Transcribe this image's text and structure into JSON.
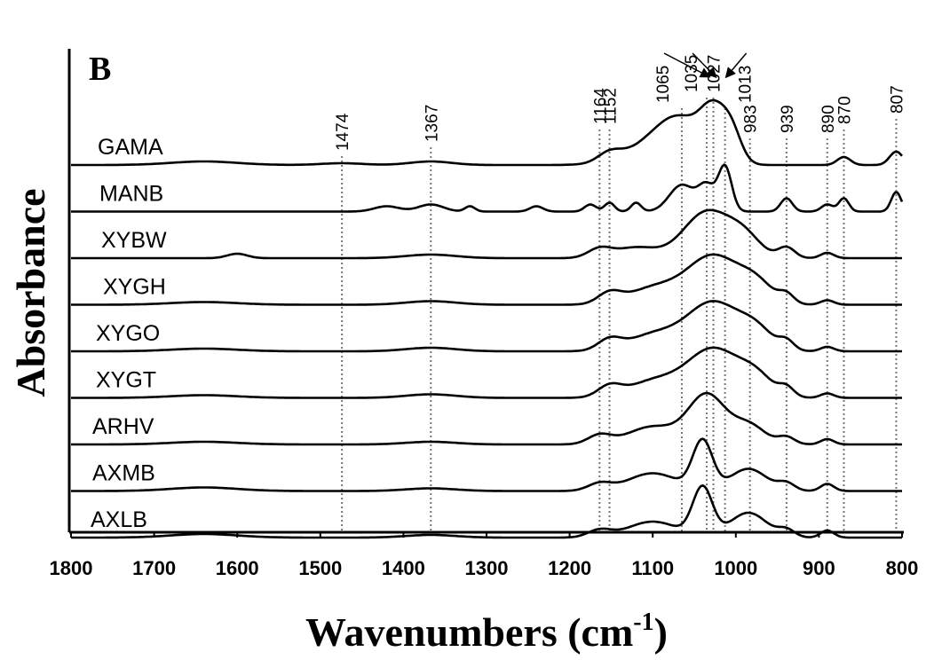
{
  "chart_data": {
    "type": "line",
    "panel_label": "B",
    "xlabel": "Wavenumbers (cm",
    "xlabel_sup": "-1",
    "xlabel_close": ")",
    "ylabel": "Absorbance",
    "xlim": [
      1800,
      800
    ],
    "x_reversed": true,
    "x_ticks": [
      1800,
      1700,
      1600,
      1500,
      1400,
      1300,
      1200,
      1100,
      1000,
      900,
      800
    ],
    "grid": false,
    "reference_lines": [
      1474,
      1367,
      1164,
      1152,
      1065,
      1035,
      1027,
      1013,
      983,
      939,
      890,
      870,
      807
    ],
    "series": [
      {
        "name": "GAMA",
        "offset": 0,
        "baseline": 0.0,
        "peaks": [
          [
            1640,
            4,
            40
          ],
          [
            1474,
            2,
            25
          ],
          [
            1367,
            4,
            25
          ],
          [
            1152,
            10,
            14
          ],
          [
            1100,
            20,
            35
          ],
          [
            1065,
            42,
            28
          ],
          [
            1027,
            48,
            15
          ],
          [
            1005,
            32,
            12
          ],
          [
            870,
            9,
            8
          ],
          [
            807,
            15,
            8
          ]
        ]
      },
      {
        "name": "MANB",
        "offset": 1,
        "baseline": 0.0,
        "peaks": [
          [
            1420,
            6,
            15
          ],
          [
            1367,
            8,
            15
          ],
          [
            1320,
            6,
            6
          ],
          [
            1240,
            6,
            8
          ],
          [
            1175,
            8,
            7
          ],
          [
            1152,
            10,
            6
          ],
          [
            1120,
            10,
            6
          ],
          [
            1065,
            30,
            15
          ],
          [
            1035,
            28,
            10
          ],
          [
            1013,
            50,
            8
          ],
          [
            939,
            15,
            7
          ],
          [
            890,
            8,
            7
          ],
          [
            870,
            15,
            6
          ],
          [
            807,
            22,
            6
          ]
        ]
      },
      {
        "name": "XYBW",
        "offset": 2,
        "baseline": 0.0,
        "peaks": [
          [
            1600,
            5,
            12
          ],
          [
            1367,
            4,
            30
          ],
          [
            1164,
            10,
            14
          ],
          [
            1120,
            12,
            25
          ],
          [
            1035,
            52,
            28
          ],
          [
            990,
            22,
            20
          ],
          [
            939,
            12,
            10
          ],
          [
            890,
            6,
            8
          ]
        ]
      },
      {
        "name": "XYGH",
        "offset": 3,
        "baseline": 0.0,
        "peaks": [
          [
            1640,
            3,
            40
          ],
          [
            1367,
            4,
            30
          ],
          [
            1152,
            12,
            14
          ],
          [
            1100,
            18,
            30
          ],
          [
            1027,
            55,
            32
          ],
          [
            975,
            20,
            20
          ],
          [
            939,
            10,
            9
          ],
          [
            890,
            5,
            8
          ]
        ]
      },
      {
        "name": "XYGO",
        "offset": 4,
        "baseline": 0.0,
        "peaks": [
          [
            1640,
            3,
            40
          ],
          [
            1367,
            4,
            30
          ],
          [
            1152,
            12,
            14
          ],
          [
            1100,
            18,
            30
          ],
          [
            1027,
            55,
            32
          ],
          [
            975,
            20,
            20
          ],
          [
            939,
            10,
            9
          ],
          [
            890,
            5,
            8
          ]
        ]
      },
      {
        "name": "XYGT",
        "offset": 5,
        "baseline": 0.0,
        "peaks": [
          [
            1640,
            3,
            40
          ],
          [
            1367,
            4,
            30
          ],
          [
            1152,
            12,
            14
          ],
          [
            1100,
            18,
            30
          ],
          [
            1027,
            55,
            32
          ],
          [
            975,
            20,
            20
          ],
          [
            939,
            10,
            9
          ],
          [
            890,
            5,
            8
          ]
        ]
      },
      {
        "name": "ARHV",
        "offset": 6,
        "baseline": 0.0,
        "peaks": [
          [
            1640,
            3,
            40
          ],
          [
            1367,
            3,
            30
          ],
          [
            1164,
            10,
            14
          ],
          [
            1100,
            20,
            30
          ],
          [
            1035,
            55,
            22
          ],
          [
            985,
            22,
            20
          ],
          [
            939,
            8,
            10
          ],
          [
            890,
            6,
            8
          ]
        ]
      },
      {
        "name": "AXMB",
        "offset": 7,
        "baseline": 0.0,
        "peaks": [
          [
            1640,
            4,
            40
          ],
          [
            1367,
            3,
            30
          ],
          [
            1164,
            8,
            14
          ],
          [
            1100,
            20,
            30
          ],
          [
            1040,
            55,
            12
          ],
          [
            985,
            25,
            22
          ],
          [
            939,
            8,
            10
          ],
          [
            890,
            8,
            8
          ]
        ]
      },
      {
        "name": "AXLB",
        "offset": 8,
        "baseline": 0.0,
        "peaks": [
          [
            1640,
            4,
            40
          ],
          [
            1367,
            3,
            30
          ],
          [
            1164,
            8,
            14
          ],
          [
            1100,
            18,
            30
          ],
          [
            1040,
            55,
            12
          ],
          [
            985,
            28,
            22
          ],
          [
            939,
            8,
            10
          ],
          [
            890,
            8,
            8
          ]
        ]
      }
    ]
  }
}
